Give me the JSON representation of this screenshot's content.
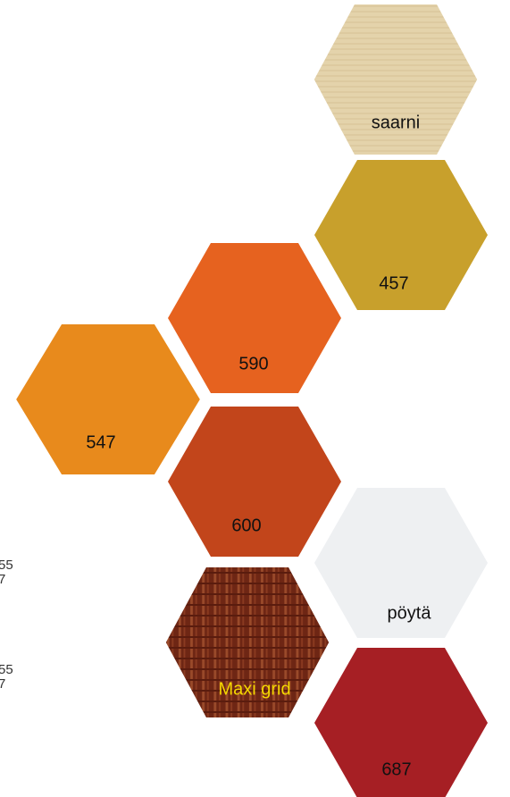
{
  "swatches": [
    {
      "label": "saarni"
    },
    {
      "label": "457"
    },
    {
      "label": "590"
    },
    {
      "label": "547"
    },
    {
      "label": "600"
    },
    {
      "label": "pöytä"
    },
    {
      "label": "Maxi grid"
    },
    {
      "label": "687"
    }
  ],
  "side_text": [
    "55",
    "7",
    "55",
    "7"
  ]
}
